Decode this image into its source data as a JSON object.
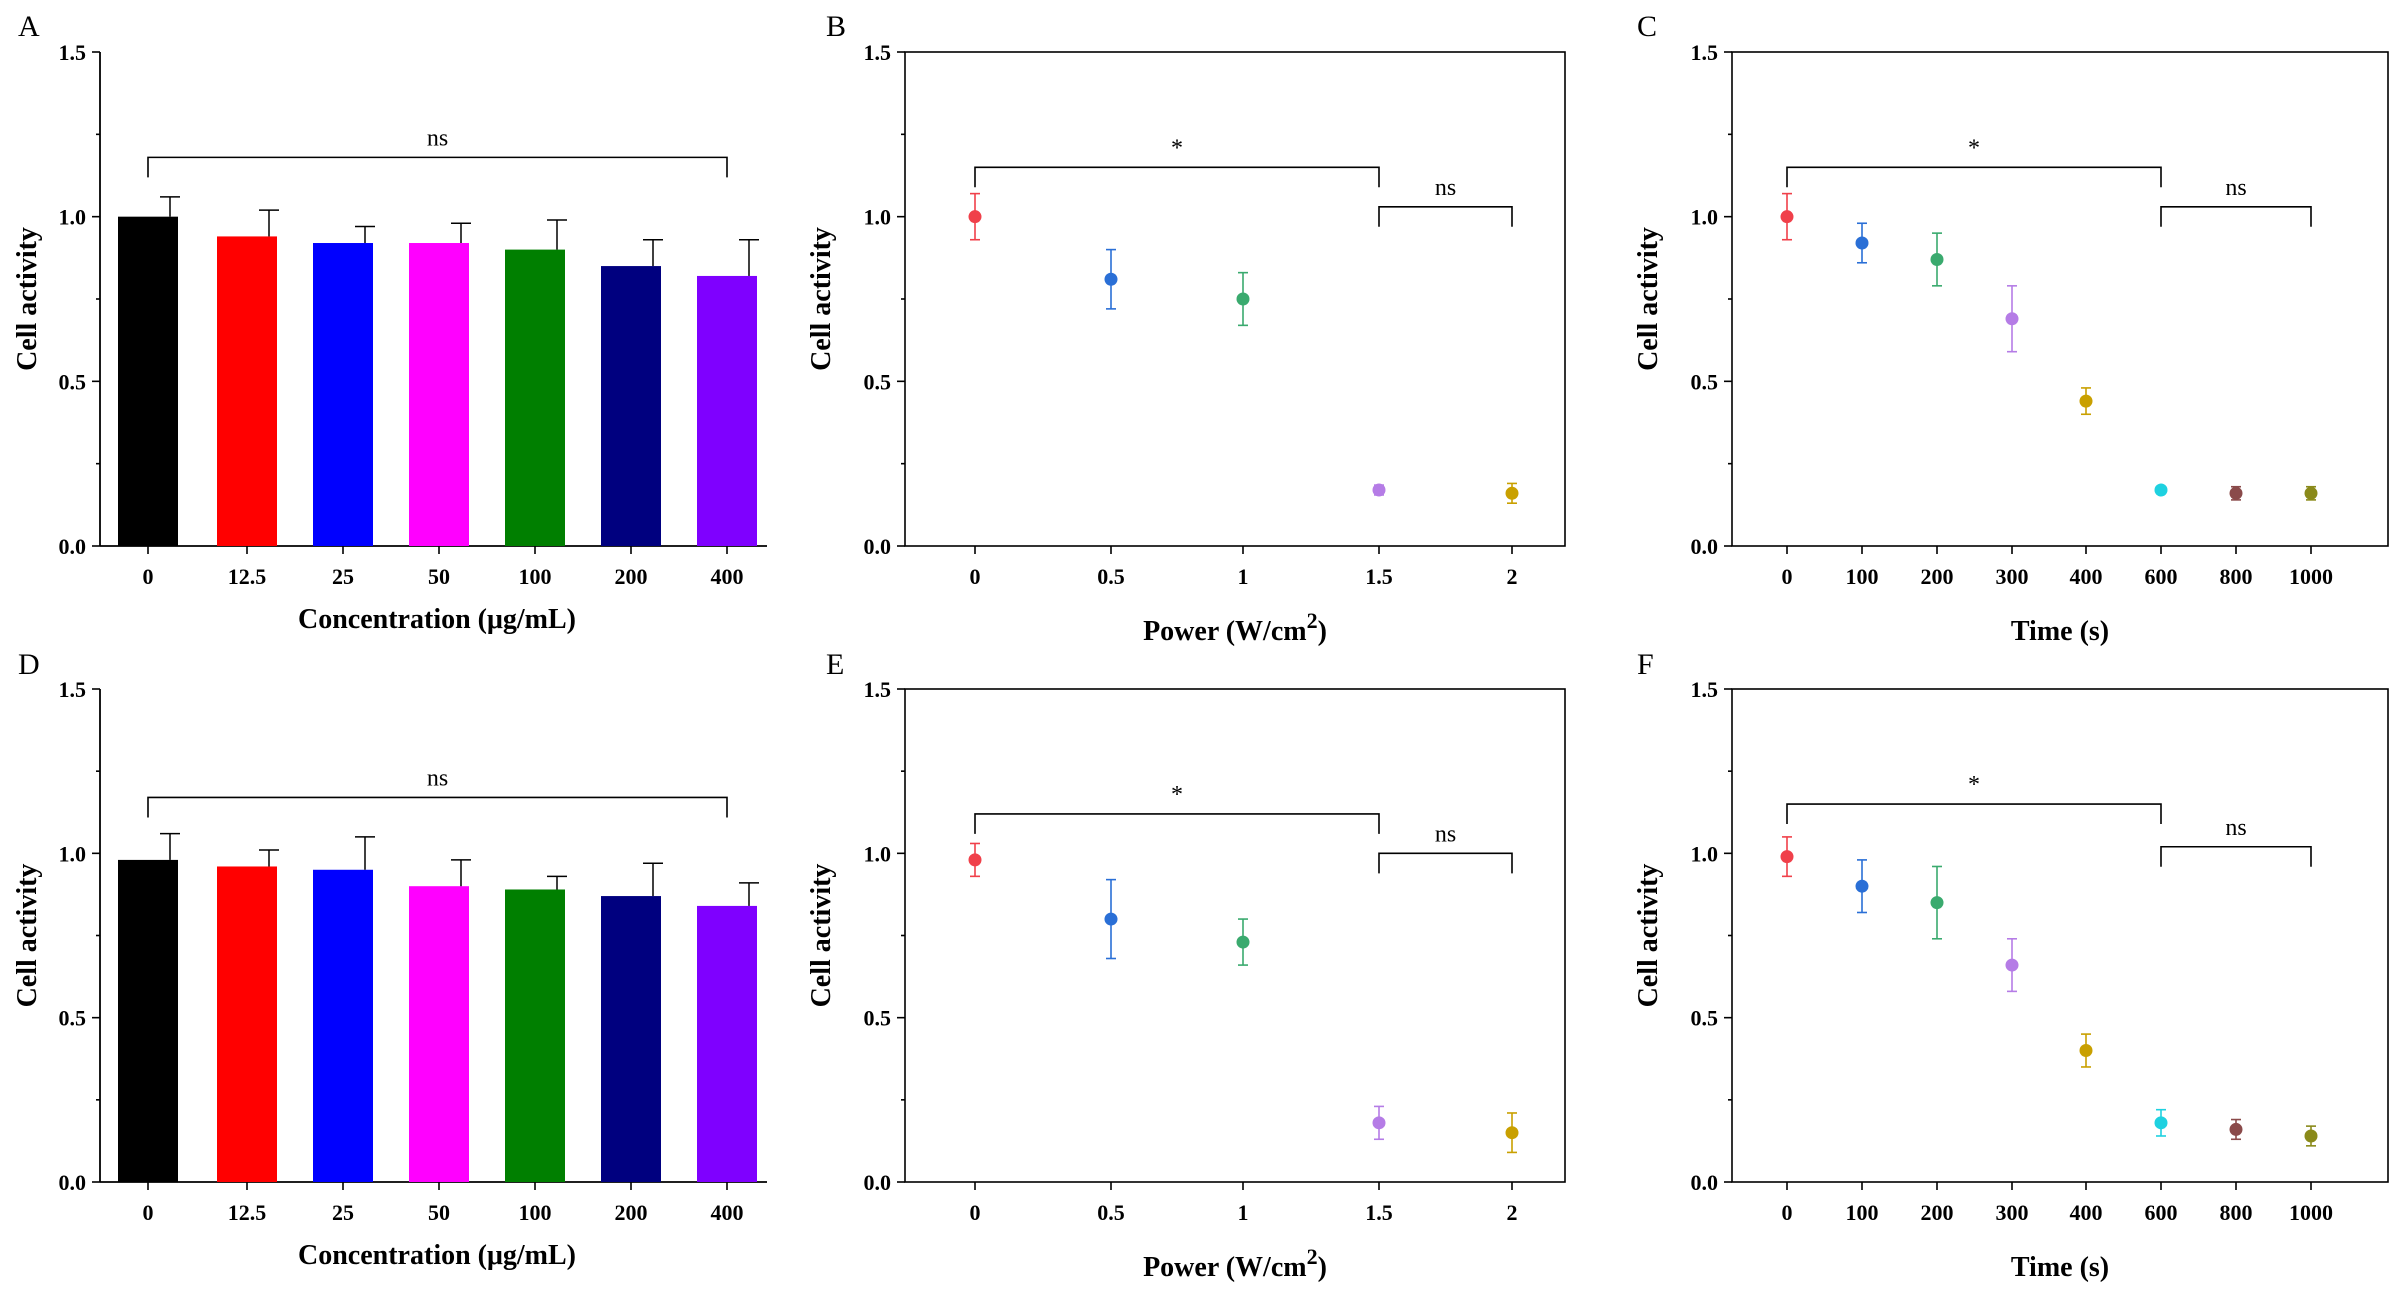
{
  "figure": {
    "panels": [
      "A",
      "B",
      "C",
      "D",
      "E",
      "F"
    ]
  },
  "chart_data": [
    {
      "panel": "A",
      "type": "bar",
      "categories": [
        "0",
        "12.5",
        "25",
        "50",
        "100",
        "200",
        "400"
      ],
      "values": [
        1.0,
        0.94,
        0.92,
        0.92,
        0.9,
        0.85,
        0.82
      ],
      "errors": [
        0.06,
        0.08,
        0.05,
        0.06,
        0.09,
        0.08,
        0.11
      ],
      "colors": [
        "#000000",
        "#ff0000",
        "#0000ff",
        "#ff00ff",
        "#007f00",
        "#00007f",
        "#7f00ff"
      ],
      "xlabel": "Concentration (μg/mL)",
      "ylabel": "Cell activity",
      "ylim": [
        0,
        1.5
      ],
      "yticks": [
        "0.0",
        "0.5",
        "1.0",
        "1.5"
      ],
      "significance": [
        {
          "from": 0,
          "to": 6,
          "label": "ns",
          "level": 1.18
        }
      ]
    },
    {
      "panel": "B",
      "type": "scatter",
      "categories": [
        "0",
        "0.5",
        "1",
        "1.5",
        "2"
      ],
      "values": [
        1.0,
        0.81,
        0.75,
        0.17,
        0.16
      ],
      "errors": [
        0.07,
        0.09,
        0.08,
        0.015,
        0.03
      ],
      "colors": [
        "#f0404a",
        "#2a6fd6",
        "#3aaa6e",
        "#b57ce6",
        "#c9a000"
      ],
      "xlabel": "Power (W/cm",
      "xlabel_sup": "2",
      "xlabel_end": ")",
      "ylabel": "Cell activity",
      "ylim": [
        0,
        1.5
      ],
      "yticks": [
        "0.0",
        "0.5",
        "1.0",
        "1.5"
      ],
      "significance": [
        {
          "from": 0,
          "to": 3,
          "label": "*",
          "level": 1.15
        },
        {
          "from": 3,
          "to": 4,
          "label": "ns",
          "level": 1.03
        }
      ]
    },
    {
      "panel": "C",
      "type": "scatter",
      "categories": [
        "0",
        "100",
        "200",
        "300",
        "400",
        "600",
        "800",
        "1000"
      ],
      "values": [
        1.0,
        0.92,
        0.87,
        0.69,
        0.44,
        0.17,
        0.16,
        0.16
      ],
      "errors": [
        0.07,
        0.06,
        0.08,
        0.1,
        0.04,
        0.01,
        0.02,
        0.02
      ],
      "colors": [
        "#f0404a",
        "#2a6fd6",
        "#3aaa6e",
        "#b57ce6",
        "#c9a000",
        "#1ed1e0",
        "#8a4a4a",
        "#8a8a1a"
      ],
      "xlabel": "Time (s)",
      "ylabel": "Cell activity",
      "ylim": [
        0,
        1.5
      ],
      "yticks": [
        "0.0",
        "0.5",
        "1.0",
        "1.5"
      ],
      "significance": [
        {
          "from": 0,
          "to": 5,
          "label": "*",
          "level": 1.15
        },
        {
          "from": 5,
          "to": 7,
          "label": "ns",
          "level": 1.03
        }
      ]
    },
    {
      "panel": "D",
      "type": "bar",
      "categories": [
        "0",
        "12.5",
        "25",
        "50",
        "100",
        "200",
        "400"
      ],
      "values": [
        0.98,
        0.96,
        0.95,
        0.9,
        0.89,
        0.87,
        0.84
      ],
      "errors": [
        0.08,
        0.05,
        0.1,
        0.08,
        0.04,
        0.1,
        0.07
      ],
      "colors": [
        "#000000",
        "#ff0000",
        "#0000ff",
        "#ff00ff",
        "#007f00",
        "#00007f",
        "#7f00ff"
      ],
      "xlabel": "Concentration (μg/mL)",
      "ylabel": "Cell activity",
      "ylim": [
        0,
        1.5
      ],
      "yticks": [
        "0.0",
        "0.5",
        "1.0",
        "1.5"
      ],
      "significance": [
        {
          "from": 0,
          "to": 6,
          "label": "ns",
          "level": 1.17
        }
      ]
    },
    {
      "panel": "E",
      "type": "scatter",
      "categories": [
        "0",
        "0.5",
        "1",
        "1.5",
        "2"
      ],
      "values": [
        0.98,
        0.8,
        0.73,
        0.18,
        0.15
      ],
      "errors": [
        0.05,
        0.12,
        0.07,
        0.05,
        0.06
      ],
      "colors": [
        "#f0404a",
        "#2a6fd6",
        "#3aaa6e",
        "#b57ce6",
        "#c9a000"
      ],
      "xlabel": "Power (W/cm",
      "xlabel_sup": "2",
      "xlabel_end": ")",
      "ylabel": "Cell activity",
      "ylim": [
        0,
        1.5
      ],
      "yticks": [
        "0.0",
        "0.5",
        "1.0",
        "1.5"
      ],
      "significance": [
        {
          "from": 0,
          "to": 3,
          "label": "*",
          "level": 1.12
        },
        {
          "from": 3,
          "to": 4,
          "label": "ns",
          "level": 1.0
        }
      ]
    },
    {
      "panel": "F",
      "type": "scatter",
      "categories": [
        "0",
        "100",
        "200",
        "300",
        "400",
        "600",
        "800",
        "1000"
      ],
      "values": [
        0.99,
        0.9,
        0.85,
        0.66,
        0.4,
        0.18,
        0.16,
        0.14
      ],
      "errors": [
        0.06,
        0.08,
        0.11,
        0.08,
        0.05,
        0.04,
        0.03,
        0.03
      ],
      "colors": [
        "#f0404a",
        "#2a6fd6",
        "#3aaa6e",
        "#b57ce6",
        "#c9a000",
        "#1ed1e0",
        "#8a4a4a",
        "#8a8a1a"
      ],
      "xlabel": "Time (s)",
      "ylabel": "Cell activity",
      "ylim": [
        0,
        1.5
      ],
      "yticks": [
        "0.0",
        "0.5",
        "1.0",
        "1.5"
      ],
      "significance": [
        {
          "from": 0,
          "to": 5,
          "label": "*",
          "level": 1.15
        },
        {
          "from": 5,
          "to": 7,
          "label": "ns",
          "level": 1.02
        }
      ]
    }
  ]
}
